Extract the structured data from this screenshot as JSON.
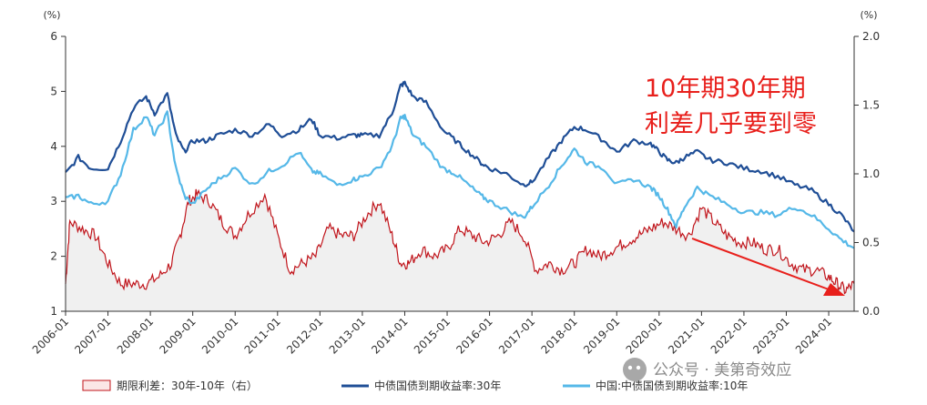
{
  "chart_data": {
    "type": "line",
    "left_axis": {
      "unit": "(%)",
      "ylim": [
        1,
        6
      ],
      "ticks": [
        "1",
        "2",
        "3",
        "4",
        "5",
        "6"
      ]
    },
    "right_axis": {
      "unit": "(%)",
      "ylim": [
        0.0,
        2.0
      ],
      "ticks": [
        "0.0",
        "0.5",
        "1.0",
        "1.5",
        "2.0"
      ]
    },
    "x_ticks": [
      "2006-01",
      "2007-01",
      "2008-01",
      "2009-01",
      "2010-01",
      "2011-01",
      "2012-01",
      "2013-01",
      "2014-01",
      "2015-01",
      "2016-01",
      "2017-01",
      "2018-01",
      "2019-01",
      "2020-01",
      "2021-01",
      "2022-01",
      "2023-01",
      "2024-01"
    ],
    "xlim": [
      2006.0,
      2024.6
    ],
    "series": [
      {
        "name": "中债国债到期收益率:30年",
        "axis": "left",
        "color": "#1f4e96",
        "x": [
          2006.0,
          2006.3,
          2006.6,
          2007.0,
          2007.3,
          2007.6,
          2007.9,
          2008.1,
          2008.4,
          2008.6,
          2008.8,
          2009.0,
          2009.3,
          2009.6,
          2010.0,
          2010.4,
          2010.8,
          2011.1,
          2011.5,
          2011.8,
          2012.0,
          2012.4,
          2012.8,
          2013.0,
          2013.4,
          2013.7,
          2013.9,
          2014.0,
          2014.2,
          2014.5,
          2014.9,
          2015.2,
          2015.5,
          2015.8,
          2016.0,
          2016.4,
          2016.8,
          2017.0,
          2017.4,
          2017.7,
          2018.0,
          2018.3,
          2018.7,
          2019.0,
          2019.4,
          2019.8,
          2020.0,
          2020.2,
          2020.4,
          2020.6,
          2020.9,
          2021.2,
          2021.6,
          2022.0,
          2022.4,
          2022.8,
          2023.2,
          2023.6,
          2024.0,
          2024.3,
          2024.6
        ],
        "values": [
          3.5,
          3.8,
          3.6,
          3.6,
          4.1,
          4.7,
          4.9,
          4.6,
          4.95,
          4.2,
          3.9,
          4.1,
          4.1,
          4.2,
          4.3,
          4.2,
          4.4,
          4.2,
          4.3,
          4.5,
          4.2,
          4.15,
          4.2,
          4.2,
          4.2,
          4.6,
          5.1,
          5.15,
          4.9,
          4.8,
          4.3,
          4.1,
          3.9,
          3.7,
          3.6,
          3.5,
          3.3,
          3.35,
          3.8,
          4.1,
          4.35,
          4.3,
          4.1,
          3.9,
          4.1,
          4.05,
          3.9,
          3.75,
          3.7,
          3.8,
          3.9,
          3.75,
          3.7,
          3.6,
          3.55,
          3.45,
          3.3,
          3.2,
          2.95,
          2.75,
          2.45
        ]
      },
      {
        "name": "中国:中债国债到期收益率:10年",
        "axis": "left",
        "color": "#55b8e8",
        "x": [
          2006.0,
          2006.3,
          2006.6,
          2007.0,
          2007.3,
          2007.6,
          2007.9,
          2008.1,
          2008.4,
          2008.6,
          2008.8,
          2009.0,
          2009.3,
          2009.6,
          2010.0,
          2010.4,
          2010.8,
          2011.1,
          2011.5,
          2011.8,
          2012.0,
          2012.4,
          2012.8,
          2013.0,
          2013.4,
          2013.7,
          2013.9,
          2014.0,
          2014.2,
          2014.5,
          2014.9,
          2015.2,
          2015.5,
          2015.8,
          2016.0,
          2016.4,
          2016.8,
          2017.0,
          2017.4,
          2017.7,
          2018.0,
          2018.3,
          2018.7,
          2019.0,
          2019.4,
          2019.8,
          2020.0,
          2020.2,
          2020.4,
          2020.6,
          2020.9,
          2021.2,
          2021.6,
          2022.0,
          2022.4,
          2022.8,
          2023.2,
          2023.6,
          2024.0,
          2024.3,
          2024.6
        ],
        "values": [
          3.05,
          3.1,
          2.95,
          3.0,
          3.5,
          4.3,
          4.55,
          4.2,
          4.6,
          3.6,
          3.1,
          2.95,
          3.2,
          3.4,
          3.6,
          3.3,
          3.55,
          3.65,
          3.9,
          3.55,
          3.5,
          3.3,
          3.4,
          3.45,
          3.6,
          4.0,
          4.5,
          4.55,
          4.2,
          4.0,
          3.6,
          3.5,
          3.3,
          3.1,
          3.0,
          2.85,
          2.7,
          2.9,
          3.3,
          3.65,
          3.95,
          3.7,
          3.6,
          3.3,
          3.4,
          3.25,
          3.1,
          2.85,
          2.55,
          2.9,
          3.25,
          3.1,
          2.95,
          2.8,
          2.8,
          2.75,
          2.9,
          2.75,
          2.5,
          2.3,
          2.15
        ]
      },
      {
        "name": "期限利差:30年-10年（右）",
        "axis": "right",
        "color": "#c0141b",
        "x": [
          2006.0,
          2006.1,
          2006.4,
          2006.7,
          2007.0,
          2007.3,
          2007.6,
          2007.9,
          2008.2,
          2008.5,
          2008.7,
          2008.9,
          2009.1,
          2009.4,
          2009.7,
          2010.0,
          2010.3,
          2010.7,
          2011.0,
          2011.3,
          2011.6,
          2011.9,
          2012.2,
          2012.5,
          2012.8,
          2013.1,
          2013.4,
          2013.7,
          2013.9,
          2014.1,
          2014.4,
          2014.7,
          2015.0,
          2015.3,
          2015.6,
          2015.9,
          2016.2,
          2016.5,
          2016.8,
          2017.1,
          2017.4,
          2017.7,
          2018.0,
          2018.3,
          2018.6,
          2018.9,
          2019.2,
          2019.5,
          2019.8,
          2020.1,
          2020.4,
          2020.7,
          2021.0,
          2021.3,
          2021.6,
          2021.9,
          2022.2,
          2022.5,
          2022.8,
          2023.1,
          2023.4,
          2023.7,
          2024.0,
          2024.2,
          2024.4,
          2024.6
        ],
        "values": [
          0.2,
          0.65,
          0.6,
          0.55,
          0.35,
          0.2,
          0.2,
          0.2,
          0.25,
          0.35,
          0.55,
          0.8,
          0.85,
          0.8,
          0.65,
          0.55,
          0.7,
          0.85,
          0.55,
          0.3,
          0.35,
          0.4,
          0.6,
          0.55,
          0.55,
          0.7,
          0.8,
          0.55,
          0.35,
          0.35,
          0.45,
          0.4,
          0.45,
          0.6,
          0.55,
          0.5,
          0.55,
          0.65,
          0.55,
          0.3,
          0.35,
          0.3,
          0.35,
          0.45,
          0.4,
          0.45,
          0.5,
          0.55,
          0.6,
          0.65,
          0.6,
          0.55,
          0.75,
          0.65,
          0.55,
          0.5,
          0.5,
          0.45,
          0.45,
          0.35,
          0.3,
          0.3,
          0.25,
          0.2,
          0.15,
          0.2
        ]
      }
    ],
    "legend": [
      {
        "label": "期限利差：30年-10年（右）",
        "style": "area",
        "color": "#c0141b"
      },
      {
        "label": "中债国债到期收益率:30年",
        "style": "line",
        "color": "#1f4e96"
      },
      {
        "label": "中国:中债国债到期收益率:10年",
        "style": "line",
        "color": "#55b8e8"
      }
    ],
    "legend_position": "bottom",
    "annotation": {
      "lines": [
        "10年期30年期",
        "利差几乎要到零"
      ],
      "color": "#e8201c"
    },
    "grid": false
  },
  "watermark": {
    "text": "公众号 · 美第奇效应"
  }
}
